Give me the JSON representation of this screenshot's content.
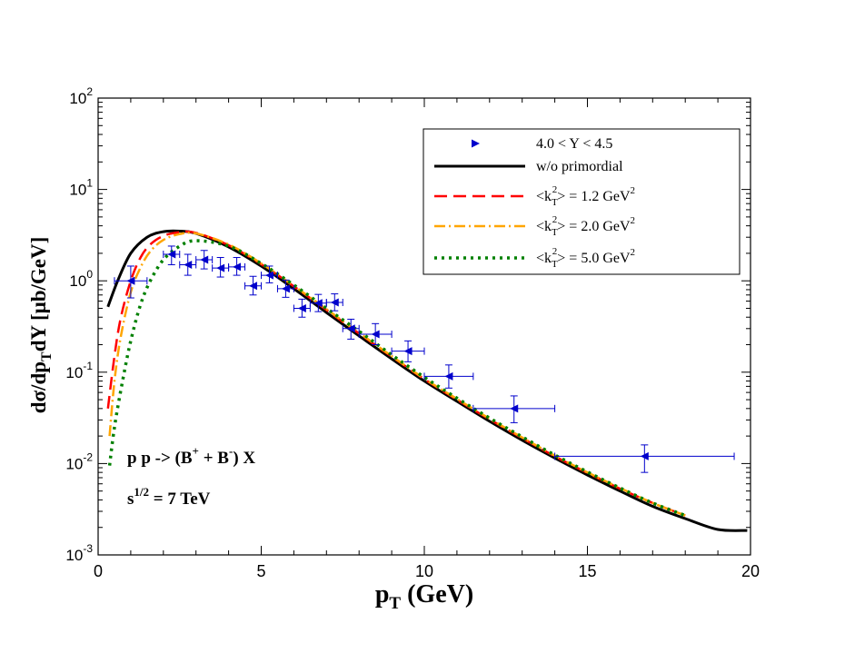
{
  "chart_data": {
    "type": "line",
    "y_scale": "log",
    "xlim": [
      0,
      20
    ],
    "ylim": [
      0.001,
      100
    ],
    "xlabel": {
      "main": "p",
      "sub": "T",
      "rest": " (GeV)"
    },
    "ylabel": {
      "main": "dσ/dp",
      "sub": "T",
      "rest": "dY [μb/GeV]"
    },
    "grid": false,
    "legend_position": "top-right",
    "x_ticks": [
      {
        "value": 0,
        "label": "0"
      },
      {
        "value": 5,
        "label": "5"
      },
      {
        "value": 10,
        "label": "10"
      },
      {
        "value": 15,
        "label": "15"
      },
      {
        "value": 20,
        "label": "20"
      }
    ],
    "y_ticks": [
      {
        "value": 0.001,
        "base": "10",
        "exp": "-3"
      },
      {
        "value": 0.01,
        "base": "10",
        "exp": "-2"
      },
      {
        "value": 0.1,
        "base": "10",
        "exp": "-1"
      },
      {
        "value": 1,
        "base": "10",
        "exp": "0"
      },
      {
        "value": 10,
        "base": "10",
        "exp": "1"
      },
      {
        "value": 100,
        "base": "10",
        "exp": "2"
      }
    ],
    "annotations": {
      "process": {
        "pre": "p p -> (B",
        "sup1": "+",
        "mid": " + B",
        "sup2": "-",
        "post": ") X"
      },
      "energy": {
        "pre": "s",
        "sup": "1/2",
        "post": " = 7 TeV"
      }
    },
    "data_series": {
      "name": "4.0 < Y < 4.5",
      "color": "#0000cc",
      "points": [
        {
          "x": 1.0,
          "y": 1.0,
          "xerr": 0.5,
          "ylo": 0.65,
          "yhi": 1.45
        },
        {
          "x": 2.25,
          "y": 1.95,
          "xerr": 0.25,
          "ylo": 1.5,
          "yhi": 2.4
        },
        {
          "x": 2.75,
          "y": 1.5,
          "xerr": 0.25,
          "ylo": 1.15,
          "yhi": 1.95
        },
        {
          "x": 3.25,
          "y": 1.7,
          "xerr": 0.25,
          "ylo": 1.35,
          "yhi": 2.15
        },
        {
          "x": 3.75,
          "y": 1.38,
          "xerr": 0.25,
          "ylo": 1.1,
          "yhi": 1.8
        },
        {
          "x": 4.25,
          "y": 1.42,
          "xerr": 0.25,
          "ylo": 1.15,
          "yhi": 1.8
        },
        {
          "x": 4.75,
          "y": 0.88,
          "xerr": 0.25,
          "ylo": 0.7,
          "yhi": 1.12
        },
        {
          "x": 5.25,
          "y": 1.15,
          "xerr": 0.25,
          "ylo": 0.95,
          "yhi": 1.45
        },
        {
          "x": 5.75,
          "y": 0.82,
          "xerr": 0.25,
          "ylo": 0.66,
          "yhi": 1.02
        },
        {
          "x": 6.25,
          "y": 0.5,
          "xerr": 0.25,
          "ylo": 0.4,
          "yhi": 0.63
        },
        {
          "x": 6.75,
          "y": 0.57,
          "xerr": 0.25,
          "ylo": 0.46,
          "yhi": 0.71
        },
        {
          "x": 7.25,
          "y": 0.58,
          "xerr": 0.25,
          "ylo": 0.47,
          "yhi": 0.72
        },
        {
          "x": 7.75,
          "y": 0.3,
          "xerr": 0.25,
          "ylo": 0.23,
          "yhi": 0.38
        },
        {
          "x": 8.5,
          "y": 0.26,
          "xerr": 0.5,
          "ylo": 0.2,
          "yhi": 0.34
        },
        {
          "x": 9.5,
          "y": 0.17,
          "xerr": 0.5,
          "ylo": 0.13,
          "yhi": 0.22
        },
        {
          "x": 10.75,
          "y": 0.09,
          "xerr": 0.75,
          "ylo": 0.067,
          "yhi": 0.12
        },
        {
          "x": 12.75,
          "y": 0.04,
          "xerr": 1.25,
          "ylo": 0.028,
          "yhi": 0.055
        },
        {
          "x": 16.75,
          "y": 0.012,
          "xerr": 2.75,
          "ylo": 0.008,
          "yhi": 0.016
        }
      ]
    },
    "series": [
      {
        "name": "w/o primordial",
        "color": "#000000",
        "dash": "",
        "width": 3,
        "x": [
          0.3,
          0.6,
          1.0,
          1.5,
          2.0,
          2.5,
          3.0,
          4.0,
          5.0,
          6.0,
          7.0,
          8.0,
          9.0,
          10.0,
          11.0,
          12.0,
          13.0,
          14.0,
          15.0,
          16.0,
          17.0,
          18.0,
          19.0,
          19.9
        ],
        "y": [
          0.52,
          1.0,
          2.0,
          3.0,
          3.45,
          3.5,
          3.3,
          2.35,
          1.45,
          0.82,
          0.45,
          0.25,
          0.14,
          0.08,
          0.048,
          0.029,
          0.018,
          0.0115,
          0.0075,
          0.005,
          0.0034,
          0.0025,
          0.0019,
          0.00185
        ]
      },
      {
        "name": "<k_T^2> = 1.2 GeV^2",
        "label": {
          "pre": "<k",
          "sub": "T",
          "sup": "2",
          "post": "> = 1.2 GeV",
          "sup2": "2"
        },
        "color": "#ff0000",
        "dash": "14,7",
        "width": 2.5,
        "x": [
          0.3,
          0.5,
          0.7,
          1.0,
          1.3,
          1.6,
          2.0,
          2.5,
          3.0,
          4.0,
          5.0,
          6.0,
          7.0,
          8.0,
          9.0,
          10.0,
          11.0,
          12.0,
          13.0,
          14.0,
          15.0,
          16.0,
          17.0,
          18.0
        ],
        "y": [
          0.04,
          0.15,
          0.4,
          1.0,
          1.8,
          2.5,
          3.1,
          3.4,
          3.35,
          2.45,
          1.52,
          0.87,
          0.48,
          0.265,
          0.148,
          0.084,
          0.05,
          0.0305,
          0.019,
          0.012,
          0.0079,
          0.0053,
          0.0037,
          0.0027
        ]
      },
      {
        "name": "<k_T^2> = 2.0 GeV^2",
        "label": {
          "pre": "<k",
          "sub": "T",
          "sup": "2",
          "post": "> = 2.0 GeV",
          "sup2": "2"
        },
        "color": "#ffa500",
        "dash": "12,4,2,4",
        "width": 2.5,
        "x": [
          0.35,
          0.5,
          0.7,
          1.0,
          1.3,
          1.6,
          2.0,
          2.5,
          3.0,
          4.0,
          5.0,
          6.0,
          7.0,
          8.0,
          9.0,
          10.0,
          11.0,
          12.0,
          13.0,
          14.0,
          15.0,
          16.0,
          17.0,
          18.0
        ],
        "y": [
          0.02,
          0.08,
          0.25,
          0.75,
          1.4,
          2.1,
          2.8,
          3.25,
          3.3,
          2.5,
          1.55,
          0.88,
          0.49,
          0.27,
          0.15,
          0.085,
          0.051,
          0.031,
          0.0193,
          0.0122,
          0.008,
          0.0054,
          0.0037,
          0.0027
        ]
      },
      {
        "name": "<k_T^2> = 5.0 GeV^2",
        "label": {
          "pre": "<k",
          "sub": "T",
          "sup": "2",
          "post": "> = 5.0 GeV",
          "sup2": "2"
        },
        "color": "#008000",
        "dash": "3,5",
        "width": 3.5,
        "x": [
          0.35,
          0.5,
          0.75,
          1.0,
          1.3,
          1.6,
          2.0,
          2.5,
          3.0,
          4.0,
          5.0,
          6.0,
          7.0,
          8.0,
          9.0,
          10.0,
          11.0,
          12.0,
          13.0,
          14.0,
          15.0,
          16.0,
          17.0,
          18.0
        ],
        "y": [
          0.0095,
          0.025,
          0.08,
          0.22,
          0.55,
          1.0,
          1.7,
          2.4,
          2.75,
          2.4,
          1.55,
          0.9,
          0.5,
          0.28,
          0.155,
          0.088,
          0.052,
          0.0315,
          0.0196,
          0.0124,
          0.0081,
          0.0054,
          0.0037,
          0.0027
        ]
      }
    ]
  }
}
